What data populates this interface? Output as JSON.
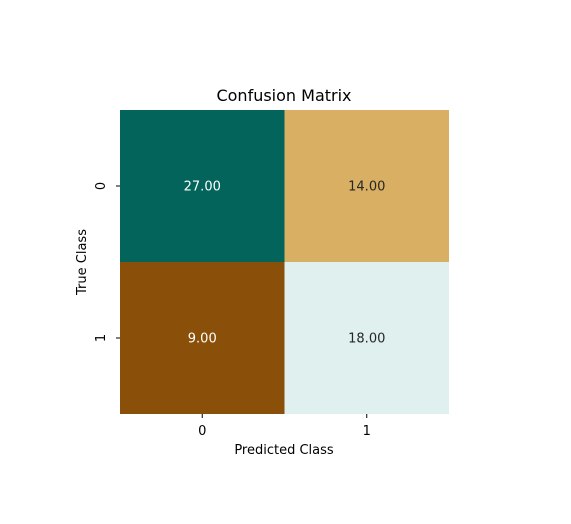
{
  "chart_data": {
    "type": "heatmap",
    "title": "Confusion Matrix",
    "xlabel": "Predicted Class",
    "ylabel": "True Class",
    "x_categories": [
      "0",
      "1"
    ],
    "y_categories": [
      "0",
      "1"
    ],
    "matrix": [
      [
        27.0,
        14.0
      ],
      [
        9.0,
        18.0
      ]
    ],
    "cell_labels": [
      [
        "27.00",
        "14.00"
      ],
      [
        "9.00",
        "18.00"
      ]
    ],
    "colormap": "BrBG",
    "cell_colors": [
      [
        "#02645a",
        "#d8af63"
      ],
      [
        "#8a500a",
        "#e0f0ee"
      ]
    ],
    "cell_text_colors": [
      [
        "#ffffff",
        "#262626"
      ],
      [
        "#ffffff",
        "#262626"
      ]
    ],
    "colorbar": false,
    "grid": false
  }
}
